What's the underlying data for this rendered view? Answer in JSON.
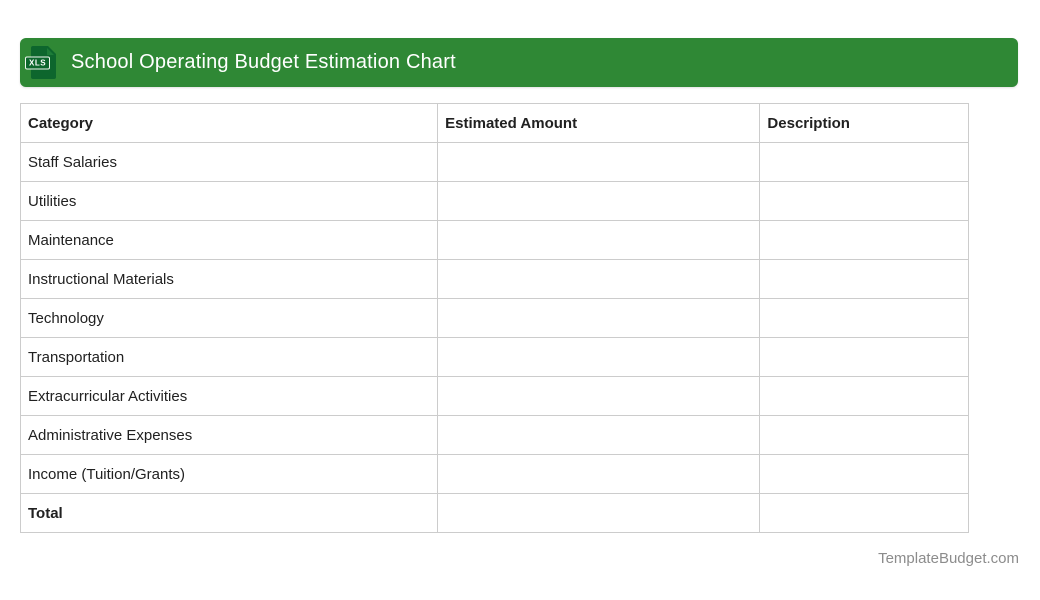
{
  "header": {
    "title": "School Operating Budget Estimation Chart",
    "file_icon_label": "XLS",
    "bar_color": "#2F8835",
    "icon_color": "#0D662D"
  },
  "table": {
    "columns": [
      "Category",
      "Estimated Amount",
      "Description"
    ],
    "rows": [
      {
        "category": "Staff Salaries",
        "estimated_amount": "",
        "description": ""
      },
      {
        "category": "Utilities",
        "estimated_amount": "",
        "description": ""
      },
      {
        "category": "Maintenance",
        "estimated_amount": "",
        "description": ""
      },
      {
        "category": "Instructional Materials",
        "estimated_amount": "",
        "description": ""
      },
      {
        "category": "Technology",
        "estimated_amount": "",
        "description": ""
      },
      {
        "category": "Transportation",
        "estimated_amount": "",
        "description": ""
      },
      {
        "category": "Extracurricular Activities",
        "estimated_amount": "",
        "description": ""
      },
      {
        "category": "Administrative Expenses",
        "estimated_amount": "",
        "description": ""
      },
      {
        "category": "Income (Tuition/Grants)",
        "estimated_amount": "",
        "description": ""
      },
      {
        "category": "Total",
        "estimated_amount": "",
        "description": ""
      }
    ]
  },
  "footer": {
    "site": "TemplateBudget.com"
  }
}
